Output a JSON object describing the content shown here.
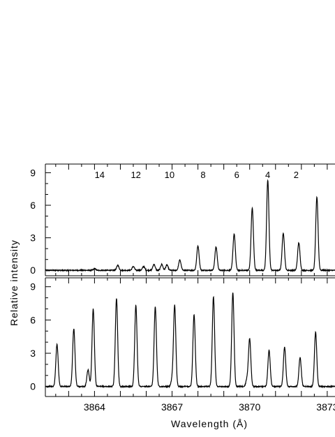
{
  "chart_data": {
    "type": "line",
    "xlabel": "Wavelength (Å)",
    "ylabel": "Relative intensity",
    "xlim": [
      3862.1,
      3873.3
    ],
    "x_ticks": [
      3864,
      3867,
      3870,
      3873
    ],
    "x_tick_labels": [
      "3864",
      "3867",
      "3870",
      "3873"
    ],
    "panels": [
      {
        "name": "top",
        "ylim": [
          -0.5,
          9.8
        ],
        "y_ticks": [
          0,
          3,
          6,
          9
        ],
        "y_tick_labels": [
          "0",
          "3",
          "6",
          "9"
        ],
        "annotations": [
          {
            "text": "14",
            "x": 3864.2
          },
          {
            "text": "12",
            "x": 3865.6
          },
          {
            "text": "10",
            "x": 3866.9
          },
          {
            "text": "8",
            "x": 3868.2
          },
          {
            "text": "6",
            "x": 3869.5
          },
          {
            "text": "4",
            "x": 3870.7
          },
          {
            "text": "2",
            "x": 3871.8
          }
        ],
        "peaks": [
          {
            "x": 3864.0,
            "y": 0.15
          },
          {
            "x": 3864.9,
            "y": 0.45
          },
          {
            "x": 3865.5,
            "y": 0.35
          },
          {
            "x": 3865.9,
            "y": 0.35
          },
          {
            "x": 3866.3,
            "y": 0.55
          },
          {
            "x": 3866.6,
            "y": 0.55
          },
          {
            "x": 3866.8,
            "y": 0.5
          },
          {
            "x": 3867.3,
            "y": 0.95
          },
          {
            "x": 3868.0,
            "y": 2.25
          },
          {
            "x": 3868.7,
            "y": 2.15
          },
          {
            "x": 3869.4,
            "y": 3.35
          },
          {
            "x": 3870.1,
            "y": 5.75
          },
          {
            "x": 3870.7,
            "y": 8.3
          },
          {
            "x": 3871.3,
            "y": 3.45
          },
          {
            "x": 3871.9,
            "y": 2.55
          },
          {
            "x": 3872.6,
            "y": 6.75
          }
        ]
      },
      {
        "name": "bottom",
        "ylim": [
          -0.9,
          9.8
        ],
        "y_ticks": [
          0,
          3,
          6,
          9
        ],
        "y_tick_labels": [
          "0",
          "3",
          "6",
          "9"
        ],
        "peaks": [
          {
            "x": 3862.55,
            "y": 3.8
          },
          {
            "x": 3863.2,
            "y": 5.2
          },
          {
            "x": 3863.75,
            "y": 1.5
          },
          {
            "x": 3863.95,
            "y": 7.0
          },
          {
            "x": 3864.85,
            "y": 7.95
          },
          {
            "x": 3865.6,
            "y": 7.3
          },
          {
            "x": 3866.35,
            "y": 7.2
          },
          {
            "x": 3867.0,
            "y": 0.55
          },
          {
            "x": 3867.1,
            "y": 7.3
          },
          {
            "x": 3867.85,
            "y": 6.5
          },
          {
            "x": 3868.6,
            "y": 8.1
          },
          {
            "x": 3869.35,
            "y": 8.45
          },
          {
            "x": 3869.9,
            "y": 0.65
          },
          {
            "x": 3870.0,
            "y": 4.3
          },
          {
            "x": 3870.75,
            "y": 3.25
          },
          {
            "x": 3871.35,
            "y": 3.55
          },
          {
            "x": 3871.95,
            "y": 2.6
          },
          {
            "x": 3872.55,
            "y": 4.9
          }
        ]
      }
    ]
  }
}
